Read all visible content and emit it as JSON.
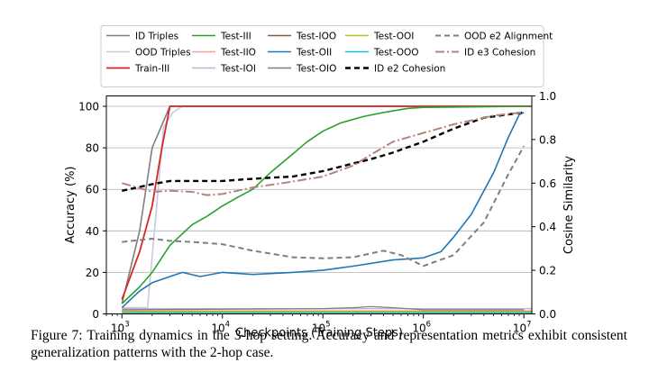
{
  "chart_data": {
    "type": "line",
    "x_scale": "log",
    "xlabel": "Checkpoints (Training Steps)",
    "ylabel": "Accuracy (%)",
    "ylabel_right": "Cosine Similarity",
    "xlim": [
      700,
      12000000
    ],
    "ylim": [
      0,
      105
    ],
    "ylim_right": [
      0,
      1.0
    ],
    "x_ticks": [
      {
        "value": 1000,
        "base": "10",
        "exp": "3"
      },
      {
        "value": 10000,
        "base": "10",
        "exp": "4"
      },
      {
        "value": 100000,
        "base": "10",
        "exp": "5"
      },
      {
        "value": 1000000,
        "base": "10",
        "exp": "6"
      },
      {
        "value": 10000000,
        "base": "10",
        "exp": "7"
      }
    ],
    "y_ticks": [
      "0",
      "20",
      "40",
      "60",
      "80",
      "100"
    ],
    "y_ticks_right": [
      "0.0",
      "0.2",
      "0.4",
      "0.6",
      "0.8",
      "1.0"
    ],
    "grid": "horizontal",
    "legend_placement": "top",
    "series": [
      {
        "name": "ID Triples",
        "axis": "left",
        "color": "#7f7f7f",
        "dash": "solid",
        "width": 1.6,
        "points": [
          [
            1000,
            5
          ],
          [
            1500,
            40
          ],
          [
            2000,
            80
          ],
          [
            3000,
            100
          ],
          [
            12000000,
            100
          ]
        ]
      },
      {
        "name": "OOD Triples",
        "axis": "left",
        "color": "#c7cbe0",
        "dash": "solid",
        "width": 1.6,
        "points": [
          [
            1000,
            3
          ],
          [
            1800,
            3
          ],
          [
            2200,
            50
          ],
          [
            2600,
            90
          ],
          [
            3200,
            97
          ],
          [
            4000,
            100
          ],
          [
            12000000,
            100
          ]
        ]
      },
      {
        "name": "Train-III",
        "axis": "left",
        "color": "#d62728",
        "dash": "solid",
        "width": 1.8,
        "points": [
          [
            1000,
            7
          ],
          [
            1500,
            30
          ],
          [
            2000,
            52
          ],
          [
            2500,
            80
          ],
          [
            3000,
            100
          ],
          [
            12000000,
            100
          ]
        ]
      },
      {
        "name": "Test-III",
        "axis": "left",
        "color": "#2ca02c",
        "dash": "solid",
        "width": 1.6,
        "points": [
          [
            1000,
            5
          ],
          [
            1500,
            13
          ],
          [
            2000,
            20
          ],
          [
            3000,
            33
          ],
          [
            5000,
            43
          ],
          [
            7000,
            47
          ],
          [
            10000,
            52
          ],
          [
            14000,
            56
          ],
          [
            20000,
            60
          ],
          [
            30000,
            68
          ],
          [
            50000,
            77
          ],
          [
            70000,
            83
          ],
          [
            100000,
            88
          ],
          [
            150000,
            92
          ],
          [
            250000,
            95
          ],
          [
            400000,
            97
          ],
          [
            700000,
            99
          ],
          [
            1000000,
            99.5
          ],
          [
            12000000,
            100
          ]
        ]
      },
      {
        "name": "Test-IIO",
        "axis": "left",
        "color": "#f0a39a",
        "dash": "solid",
        "width": 1.3,
        "points": [
          [
            1000,
            1.5
          ],
          [
            12000000,
            1.5
          ]
        ]
      },
      {
        "name": "Test-IOI",
        "axis": "left",
        "color": "#c5b0d5",
        "dash": "solid",
        "width": 1.3,
        "points": [
          [
            1000,
            2.5
          ],
          [
            12000000,
            2.5
          ]
        ]
      },
      {
        "name": "Test-IOO",
        "axis": "left",
        "color": "#8c564b",
        "dash": "solid",
        "width": 1.3,
        "points": [
          [
            1000,
            1.0
          ],
          [
            12000000,
            1.0
          ]
        ]
      },
      {
        "name": "Test-OII",
        "axis": "left",
        "color": "#1f77b4",
        "dash": "solid",
        "width": 1.6,
        "points": [
          [
            1000,
            3
          ],
          [
            1500,
            11
          ],
          [
            2000,
            15
          ],
          [
            3000,
            18
          ],
          [
            4000,
            20
          ],
          [
            6000,
            18
          ],
          [
            10000,
            20
          ],
          [
            20000,
            19
          ],
          [
            50000,
            20
          ],
          [
            100000,
            21
          ],
          [
            200000,
            23
          ],
          [
            500000,
            26
          ],
          [
            1000000,
            27
          ],
          [
            1500000,
            30
          ],
          [
            2000000,
            37
          ],
          [
            3000000,
            48
          ],
          [
            5000000,
            68
          ],
          [
            7000000,
            85
          ],
          [
            9000000,
            96
          ],
          [
            10000000,
            97
          ]
        ]
      },
      {
        "name": "Test-OIO",
        "axis": "left",
        "color": "#7f7f7f",
        "dash": "solid",
        "width": 1.3,
        "points": [
          [
            1000,
            2
          ],
          [
            100000,
            2.5
          ],
          [
            200000,
            3
          ],
          [
            300000,
            3.5
          ],
          [
            500000,
            3
          ],
          [
            1000000,
            2
          ],
          [
            10000000,
            2
          ]
        ]
      },
      {
        "name": "Test-OOI",
        "axis": "left",
        "color": "#bcbd22",
        "dash": "solid",
        "width": 1.3,
        "points": [
          [
            1000,
            1.2
          ],
          [
            12000000,
            1.2
          ]
        ]
      },
      {
        "name": "Test-OOO",
        "axis": "left",
        "color": "#17becf",
        "dash": "solid",
        "width": 1.3,
        "points": [
          [
            1000,
            0.6
          ],
          [
            12000000,
            0.6
          ]
        ]
      },
      {
        "name": "ID e2 Cohesion",
        "axis": "right",
        "color": "#000000",
        "dash": "6,4",
        "width": 2.4,
        "points": [
          [
            1000,
            0.565
          ],
          [
            2000,
            0.595
          ],
          [
            3000,
            0.61
          ],
          [
            5000,
            0.61
          ],
          [
            10000,
            0.61
          ],
          [
            20000,
            0.62
          ],
          [
            30000,
            0.625
          ],
          [
            50000,
            0.63
          ],
          [
            100000,
            0.655
          ],
          [
            200000,
            0.69
          ],
          [
            300000,
            0.71
          ],
          [
            500000,
            0.74
          ],
          [
            1000000,
            0.79
          ],
          [
            2000000,
            0.85
          ],
          [
            4000000,
            0.9
          ],
          [
            7000000,
            0.915
          ],
          [
            10000000,
            0.925
          ]
        ]
      },
      {
        "name": "OOD e2 Alignment",
        "axis": "right",
        "color": "#7f7f7f",
        "dash": "6,4",
        "width": 2.0,
        "points": [
          [
            1000,
            0.33
          ],
          [
            2000,
            0.345
          ],
          [
            3000,
            0.335
          ],
          [
            5000,
            0.33
          ],
          [
            10000,
            0.32
          ],
          [
            20000,
            0.29
          ],
          [
            50000,
            0.26
          ],
          [
            100000,
            0.255
          ],
          [
            200000,
            0.26
          ],
          [
            400000,
            0.29
          ],
          [
            600000,
            0.27
          ],
          [
            1000000,
            0.22
          ],
          [
            2000000,
            0.27
          ],
          [
            4000000,
            0.42
          ],
          [
            7000000,
            0.64
          ],
          [
            10000000,
            0.77
          ]
        ]
      },
      {
        "name": "ID e3 Cohesion",
        "axis": "right",
        "color": "#b5837a",
        "dash": "10,3,2,3",
        "width": 2.0,
        "points": [
          [
            1000,
            0.6
          ],
          [
            2000,
            0.56
          ],
          [
            3000,
            0.565
          ],
          [
            5000,
            0.56
          ],
          [
            7000,
            0.545
          ],
          [
            10000,
            0.55
          ],
          [
            20000,
            0.58
          ],
          [
            40000,
            0.6
          ],
          [
            100000,
            0.63
          ],
          [
            200000,
            0.68
          ],
          [
            300000,
            0.73
          ],
          [
            500000,
            0.79
          ],
          [
            1000000,
            0.83
          ],
          [
            2000000,
            0.87
          ],
          [
            5000000,
            0.91
          ],
          [
            10000000,
            0.925
          ]
        ]
      }
    ],
    "legend_columns": [
      [
        "ID Triples",
        "OOD Triples",
        "Train-III"
      ],
      [
        "Test-III",
        "Test-IIO",
        "Test-IOI"
      ],
      [
        "Test-IOO",
        "Test-OII",
        "Test-OIO"
      ],
      [
        "Test-OOI",
        "Test-OOO",
        "ID e2 Cohesion"
      ],
      [
        "OOD e2 Alignment",
        "ID e3 Cohesion"
      ]
    ]
  },
  "caption": "Figure 7: Training dynamics in the 3-hop setting. Accuracy and representation metrics exhibit consistent generalization patterns with the 2-hop case."
}
